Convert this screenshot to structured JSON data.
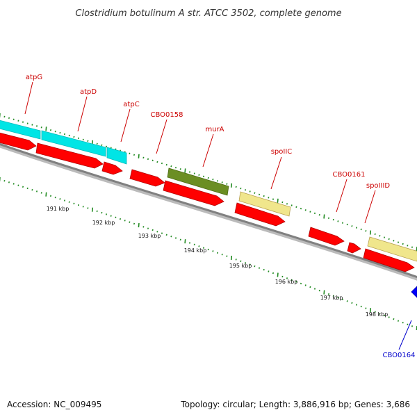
{
  "title": "Clostridium botulinum A str. ATCC 3502, complete genome",
  "footer": {
    "accession": "Accession: NC_009495",
    "topology": "Topology: circular; Length: 3,886,916 bp; Genes: 3,686"
  },
  "colors": {
    "red_gene": "#ff0000",
    "cyan_gene": "#00e5e5",
    "olive_gene": "#6b8e23",
    "yellow_gene": "#f0e68c",
    "blue_gene": "#0000ff",
    "backbone": "#888888",
    "ticks": "#228b22",
    "label_red": "#cc0000",
    "label_blue": "#0000cc"
  },
  "kbp_ticks": [
    {
      "label": "191 kbp"
    },
    {
      "label": "192 kbp"
    },
    {
      "label": "193 kbp"
    },
    {
      "label": "194 kbp"
    },
    {
      "label": "195 kbp"
    },
    {
      "label": "196 kbp"
    },
    {
      "label": "197 kbp"
    },
    {
      "label": "198 kbp"
    }
  ],
  "gene_labels": [
    {
      "name": "atpG",
      "color": "red"
    },
    {
      "name": "atpD",
      "color": "red"
    },
    {
      "name": "atpC",
      "color": "red"
    },
    {
      "name": "CBO0158",
      "color": "red"
    },
    {
      "name": "murA",
      "color": "red"
    },
    {
      "name": "spoIIC",
      "color": "red"
    },
    {
      "name": "CBO0161",
      "color": "red"
    },
    {
      "name": "spoIIID",
      "color": "red"
    },
    {
      "name": "CBO0164",
      "color": "blue"
    }
  ]
}
